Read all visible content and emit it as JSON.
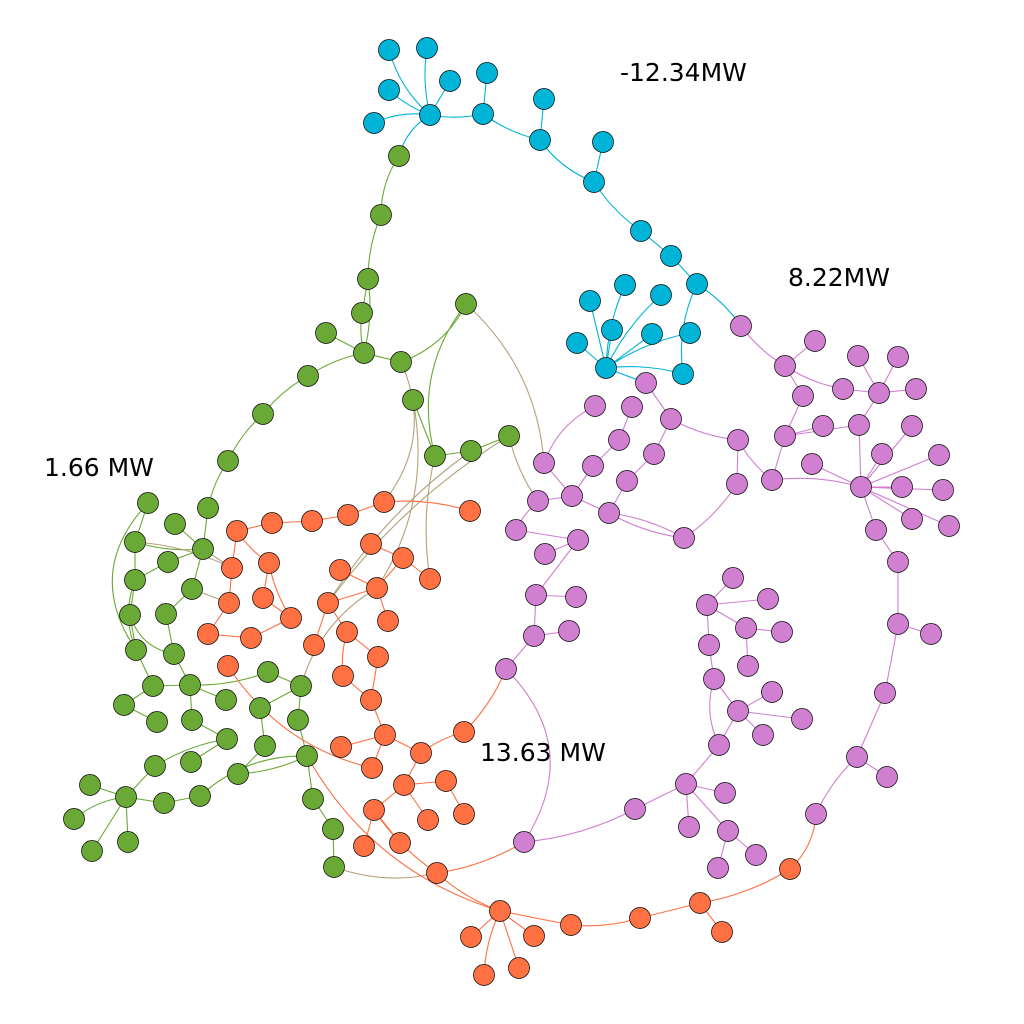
{
  "diagram": {
    "type": "network-graph",
    "colors": {
      "cyan": "#00b4d8",
      "magenta": "#d17fd1",
      "green": "#6aa935",
      "orange": "#ff7043",
      "mixed_edge": "#b5a07a",
      "node_stroke": "#000000"
    },
    "labels": [
      {
        "id": "cyan-total",
        "text": "-12.34MW",
        "color_group": "cyan"
      },
      {
        "id": "magenta-total",
        "text": "8.22MW",
        "color_group": "magenta"
      },
      {
        "id": "green-total",
        "text": "1.66 MW",
        "color_group": "green"
      },
      {
        "id": "orange-total",
        "text": "13.63 MW",
        "color_group": "orange"
      }
    ]
  }
}
